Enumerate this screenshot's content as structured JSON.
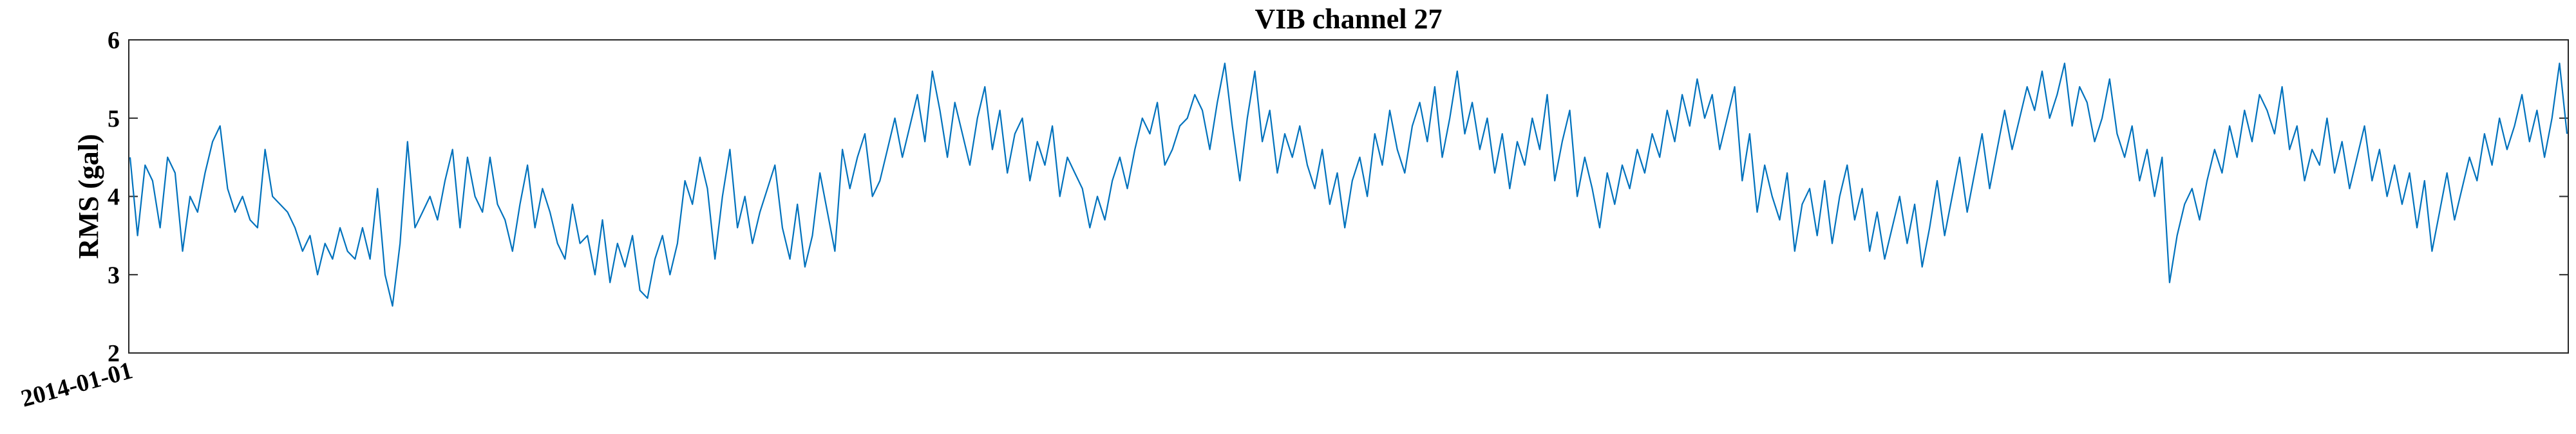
{
  "chart_data": {
    "type": "line",
    "title": "VIB channel 27",
    "xlabel": "",
    "ylabel": "RMS (gal)",
    "ylim": [
      2,
      6
    ],
    "yticks": [
      2,
      3,
      4,
      5,
      6
    ],
    "x_tick_labels": [
      "2014-01-01"
    ],
    "grid": false,
    "series": [
      {
        "name": "RMS",
        "color": "#0072BD",
        "values": [
          4.5,
          3.5,
          4.4,
          4.2,
          3.6,
          4.5,
          4.3,
          3.3,
          4.0,
          3.8,
          4.3,
          4.7,
          4.9,
          4.1,
          3.8,
          4.0,
          3.7,
          3.6,
          4.6,
          4.0,
          3.9,
          3.8,
          3.6,
          3.3,
          3.5,
          3.0,
          3.4,
          3.2,
          3.6,
          3.3,
          3.2,
          3.6,
          3.2,
          4.1,
          3.0,
          2.6,
          3.4,
          4.7,
          3.6,
          3.8,
          4.0,
          3.7,
          4.2,
          4.6,
          3.6,
          4.5,
          4.0,
          3.8,
          4.5,
          3.9,
          3.7,
          3.3,
          3.9,
          4.4,
          3.6,
          4.1,
          3.8,
          3.4,
          3.2,
          3.9,
          3.4,
          3.5,
          3.0,
          3.7,
          2.9,
          3.4,
          3.1,
          3.5,
          2.8,
          2.7,
          3.2,
          3.5,
          3.0,
          3.4,
          4.2,
          3.9,
          4.5,
          4.1,
          3.2,
          4.0,
          4.6,
          3.6,
          4.0,
          3.4,
          3.8,
          4.1,
          4.4,
          3.6,
          3.2,
          3.9,
          3.1,
          3.5,
          4.3,
          3.8,
          3.3,
          4.6,
          4.1,
          4.5,
          4.8,
          4.0,
          4.2,
          4.6,
          5.0,
          4.5,
          4.9,
          5.3,
          4.7,
          5.6,
          5.1,
          4.5,
          5.2,
          4.8,
          4.4,
          5.0,
          5.4,
          4.6,
          5.1,
          4.3,
          4.8,
          5.0,
          4.2,
          4.7,
          4.4,
          4.9,
          4.0,
          4.5,
          4.3,
          4.1,
          3.6,
          4.0,
          3.7,
          4.2,
          4.5,
          4.1,
          4.6,
          5.0,
          4.8,
          5.2,
          4.4,
          4.6,
          4.9,
          5.0,
          5.3,
          5.1,
          4.6,
          5.2,
          5.7,
          4.9,
          4.2,
          5.0,
          5.6,
          4.7,
          5.1,
          4.3,
          4.8,
          4.5,
          4.9,
          4.4,
          4.1,
          4.6,
          3.9,
          4.3,
          3.6,
          4.2,
          4.5,
          4.0,
          4.8,
          4.4,
          5.1,
          4.6,
          4.3,
          4.9,
          5.2,
          4.7,
          5.4,
          4.5,
          5.0,
          5.6,
          4.8,
          5.2,
          4.6,
          5.0,
          4.3,
          4.8,
          4.1,
          4.7,
          4.4,
          5.0,
          4.6,
          5.3,
          4.2,
          4.7,
          5.1,
          4.0,
          4.5,
          4.1,
          3.6,
          4.3,
          3.9,
          4.4,
          4.1,
          4.6,
          4.3,
          4.8,
          4.5,
          5.1,
          4.7,
          5.3,
          4.9,
          5.5,
          5.0,
          5.3,
          4.6,
          5.0,
          5.4,
          4.2,
          4.8,
          3.8,
          4.4,
          4.0,
          3.7,
          4.3,
          3.3,
          3.9,
          4.1,
          3.5,
          4.2,
          3.4,
          4.0,
          4.4,
          3.7,
          4.1,
          3.3,
          3.8,
          3.2,
          3.6,
          4.0,
          3.4,
          3.9,
          3.1,
          3.6,
          4.2,
          3.5,
          4.0,
          4.5,
          3.8,
          4.3,
          4.8,
          4.1,
          4.6,
          5.1,
          4.6,
          5.0,
          5.4,
          5.1,
          5.6,
          5.0,
          5.3,
          5.7,
          4.9,
          5.4,
          5.2,
          4.7,
          5.0,
          5.5,
          4.8,
          4.5,
          4.9,
          4.2,
          4.6,
          4.0,
          4.5,
          2.9,
          3.5,
          3.9,
          4.1,
          3.7,
          4.2,
          4.6,
          4.3,
          4.9,
          4.5,
          5.1,
          4.7,
          5.3,
          5.1,
          4.8,
          5.4,
          4.6,
          4.9,
          4.2,
          4.6,
          4.4,
          5.0,
          4.3,
          4.7,
          4.1,
          4.5,
          4.9,
          4.2,
          4.6,
          4.0,
          4.4,
          3.9,
          4.3,
          3.6,
          4.2,
          3.3,
          3.8,
          4.3,
          3.7,
          4.1,
          4.5,
          4.2,
          4.8,
          4.4,
          5.0,
          4.6,
          4.9,
          5.3,
          4.7,
          5.1,
          4.5,
          5.0,
          5.7,
          4.8
        ]
      }
    ]
  }
}
